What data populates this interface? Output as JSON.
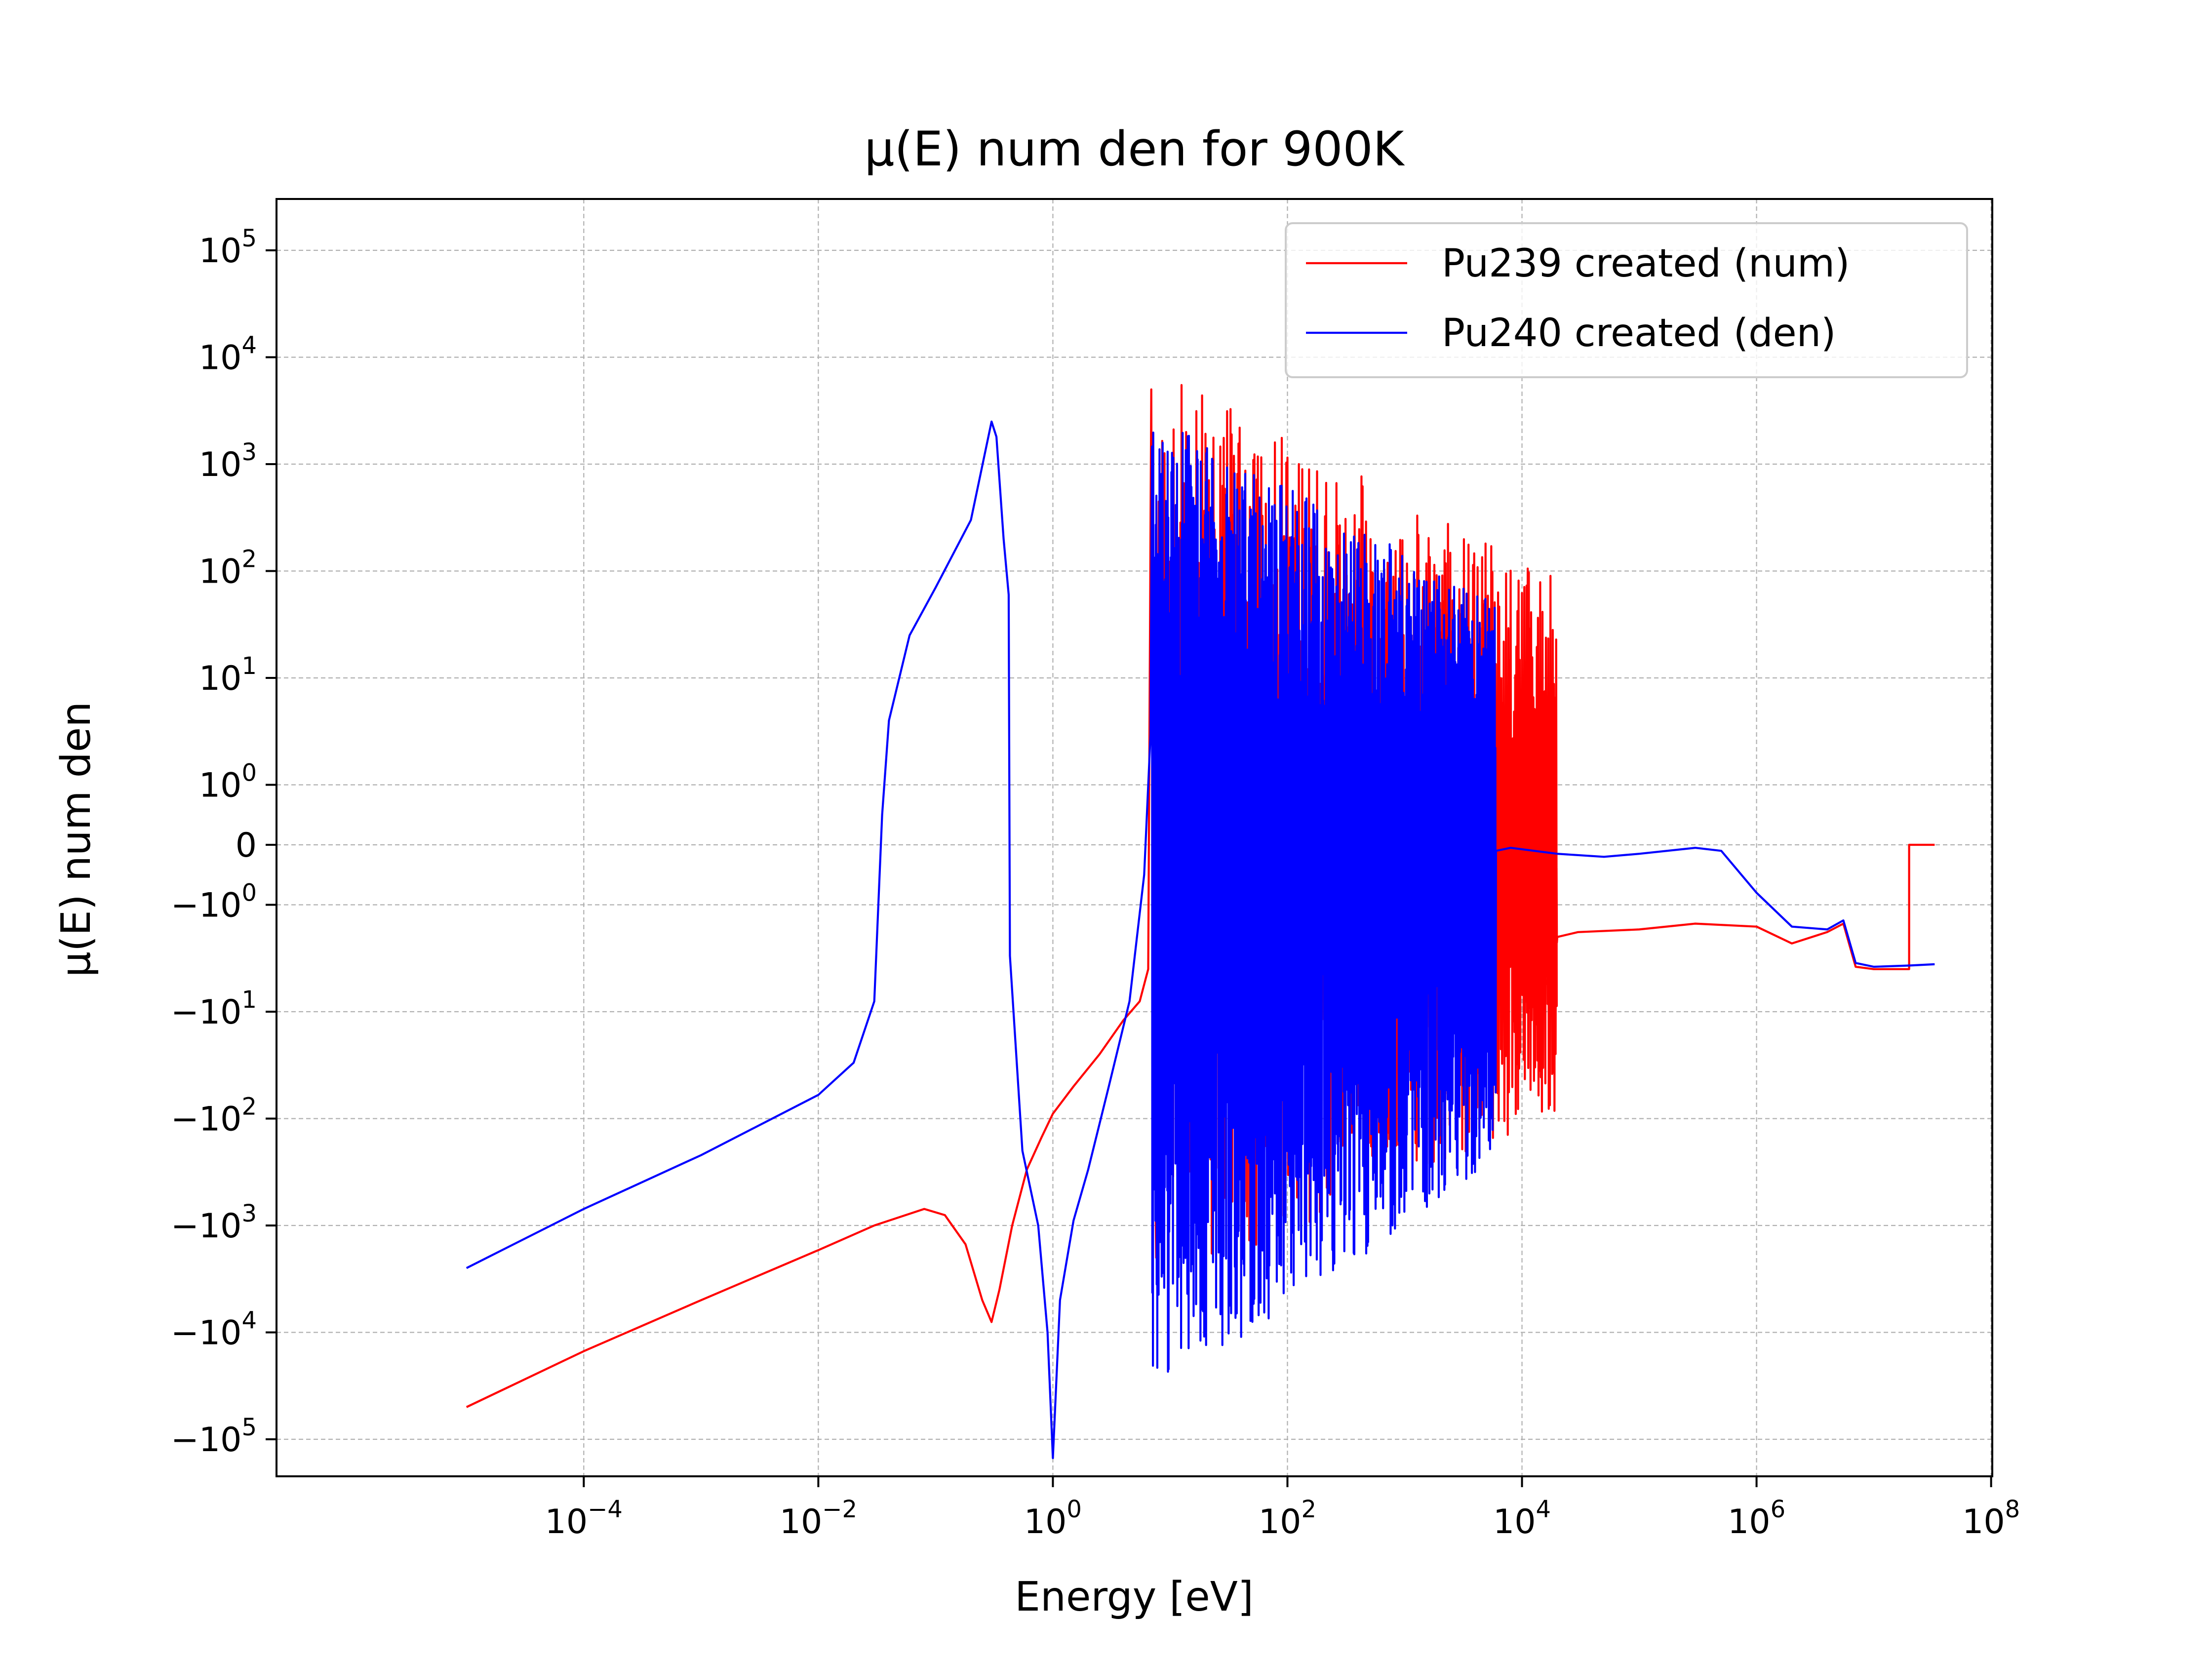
{
  "chart_data": {
    "type": "line",
    "title": "μ(E) num den for 900K",
    "xlabel": "Energy [eV]",
    "ylabel": "μ(E) num den",
    "xscale": "log",
    "yscale": "symlog",
    "xlim": [
      1e-06,
      100000000.0
    ],
    "ylim": [
      -200000,
      200000
    ],
    "grid": true,
    "legend_position": "top-right",
    "x_ticks": [
      {
        "base": "10",
        "exp": "−4",
        "value": 0.0001
      },
      {
        "base": "10",
        "exp": "−2",
        "value": 0.01
      },
      {
        "base": "10",
        "exp": "0",
        "value": 1
      },
      {
        "base": "10",
        "exp": "2",
        "value": 100
      },
      {
        "base": "10",
        "exp": "4",
        "value": 10000
      },
      {
        "base": "10",
        "exp": "6",
        "value": 1000000
      },
      {
        "base": "10",
        "exp": "8",
        "value": 100000000
      }
    ],
    "y_ticks": [
      {
        "base": "10",
        "exp": "5",
        "value": 100000
      },
      {
        "base": "10",
        "exp": "4",
        "value": 10000
      },
      {
        "base": "10",
        "exp": "3",
        "value": 1000
      },
      {
        "base": "10",
        "exp": "2",
        "value": 100
      },
      {
        "base": "10",
        "exp": "1",
        "value": 10
      },
      {
        "base": "10",
        "exp": "0",
        "value": 1
      },
      {
        "base": "0",
        "exp": "",
        "value": 0
      },
      {
        "base": "−10",
        "exp": "0",
        "value": -1
      },
      {
        "base": "−10",
        "exp": "1",
        "value": -10
      },
      {
        "base": "−10",
        "exp": "2",
        "value": -100
      },
      {
        "base": "−10",
        "exp": "3",
        "value": -1000
      },
      {
        "base": "−10",
        "exp": "4",
        "value": -10000
      },
      {
        "base": "−10",
        "exp": "5",
        "value": -100000
      }
    ],
    "series": [
      {
        "name": "Pu239 created (num)",
        "color": "#ff0000",
        "points": [
          [
            1e-05,
            -50000
          ],
          [
            0.0001,
            -15000
          ],
          [
            0.001,
            -5000
          ],
          [
            0.01,
            -1700
          ],
          [
            0.03,
            -1000
          ],
          [
            0.08,
            -700
          ],
          [
            0.12,
            -800
          ],
          [
            0.18,
            -1500
          ],
          [
            0.25,
            -5000
          ],
          [
            0.3,
            -8000
          ],
          [
            0.35,
            -4000
          ],
          [
            0.45,
            -1000
          ],
          [
            0.6,
            -300
          ],
          [
            0.8,
            -150
          ],
          [
            1.0,
            -90
          ],
          [
            1.5,
            -50
          ],
          [
            2.5,
            -25
          ],
          [
            4.0,
            -12
          ],
          [
            5.5,
            -8
          ],
          [
            6.5,
            -4
          ],
          [
            6.9,
            5000
          ],
          [
            7.1,
            -2
          ],
          [
            7.6,
            -2000
          ]
        ],
        "resonance_region": {
          "from": 8,
          "to": 20000,
          "peak_max": 4000,
          "dip_min": -2000
        },
        "tail": [
          [
            20000,
            -2
          ],
          [
            30000,
            -1.8
          ],
          [
            100000,
            -1.7
          ],
          [
            300000,
            -1.5
          ],
          [
            1000000,
            -1.6
          ],
          [
            2000000,
            -2.3
          ],
          [
            4000000,
            -1.8
          ],
          [
            5500000,
            -1.5
          ],
          [
            7000000,
            -3.8
          ],
          [
            10000000,
            -4
          ],
          [
            20000000,
            -4
          ],
          [
            20000000,
            0
          ],
          [
            33000000,
            0
          ]
        ]
      },
      {
        "name": "Pu240 created (den)",
        "color": "#0000ff",
        "points": [
          [
            1e-05,
            -2500
          ],
          [
            0.0001,
            -700
          ],
          [
            0.001,
            -220
          ],
          [
            0.01,
            -60
          ],
          [
            0.02,
            -30
          ],
          [
            0.03,
            -8
          ],
          [
            0.035,
            0.5
          ],
          [
            0.04,
            4
          ],
          [
            0.06,
            25
          ],
          [
            0.1,
            70
          ],
          [
            0.2,
            300
          ],
          [
            0.3,
            2500
          ],
          [
            0.33,
            1800
          ],
          [
            0.38,
            200
          ],
          [
            0.42,
            60
          ],
          [
            0.43,
            -3
          ],
          [
            0.55,
            -200
          ],
          [
            0.75,
            -1000
          ],
          [
            0.9,
            -10000
          ],
          [
            1.0,
            -150000
          ],
          [
            1.15,
            -5000
          ],
          [
            1.5,
            -900
          ],
          [
            2.0,
            -300
          ],
          [
            3.0,
            -50
          ],
          [
            4.5,
            -8
          ],
          [
            6.0,
            -0.5
          ],
          [
            6.8,
            3
          ]
        ],
        "resonance_region": {
          "from": 7,
          "to": 6000,
          "peak_max": 1500,
          "dip_min": -20000
        },
        "tail": [
          [
            6000,
            -0.1
          ],
          [
            8000,
            -0.05
          ],
          [
            20000,
            -0.15
          ],
          [
            50000,
            -0.2
          ],
          [
            100000,
            -0.15
          ],
          [
            300000,
            -0.05
          ],
          [
            500000,
            -0.1
          ],
          [
            1000000,
            -0.8
          ],
          [
            2000000,
            -1.6
          ],
          [
            4000000,
            -1.7
          ],
          [
            5500000,
            -1.4
          ],
          [
            7000000,
            -3.5
          ],
          [
            10000000,
            -3.8
          ],
          [
            20000000,
            -3.7
          ],
          [
            33000000,
            -3.6
          ]
        ]
      }
    ]
  }
}
